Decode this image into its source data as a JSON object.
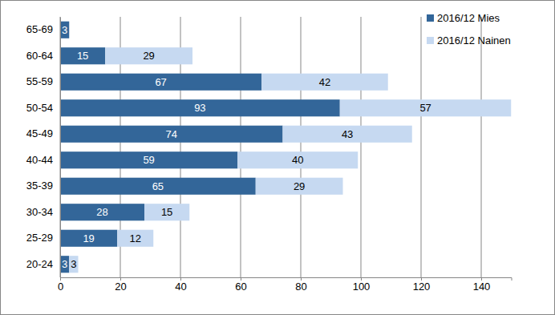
{
  "chart_data": {
    "type": "bar",
    "orientation": "horizontal",
    "stacked": true,
    "data_labels": true,
    "grid": true,
    "legend": "top-right",
    "categories": [
      "65-69",
      "60-64",
      "55-59",
      "50-54",
      "45-49",
      "40-44",
      "35-39",
      "30-34",
      "25-29",
      "20-24"
    ],
    "series": [
      {
        "name": "2016/12 Mies",
        "color": "#336699",
        "values": [
          3,
          15,
          67,
          93,
          74,
          59,
          65,
          28,
          19,
          3
        ]
      },
      {
        "name": "2016/12 Nainen",
        "color": "#c6d9f1",
        "values": [
          null,
          29,
          42,
          57,
          43,
          40,
          29,
          15,
          12,
          3
        ]
      }
    ],
    "xlim": [
      0,
      150
    ],
    "xticks": [
      0,
      20,
      40,
      60,
      80,
      100,
      120,
      140
    ]
  }
}
